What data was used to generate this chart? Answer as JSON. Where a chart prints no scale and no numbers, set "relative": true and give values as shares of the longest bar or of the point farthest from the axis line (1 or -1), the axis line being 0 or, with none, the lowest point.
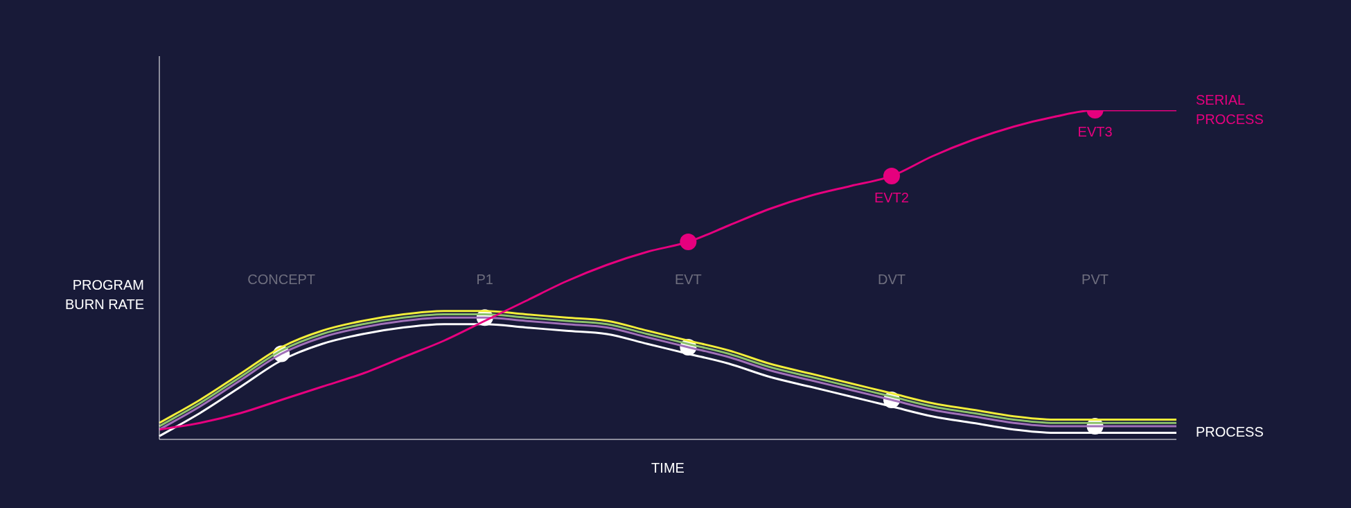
{
  "chart_data": {
    "type": "line",
    "relative": true,
    "xlabel": "TIME",
    "ylabel": "PROGRAM BURN RATE",
    "marker": "none",
    "legend": false,
    "grid": false,
    "categories": [
      null,
      null,
      null,
      "CONCEPT",
      null,
      null,
      null,
      null,
      "P1",
      null,
      null,
      null,
      null,
      "EVT",
      null,
      null,
      null,
      null,
      "DVT",
      null,
      null,
      null,
      null,
      "PVT",
      null,
      null
    ],
    "series": [
      {
        "color": "#f2ee3a",
        "values": [
          0.05,
          0.12,
          0.2,
          0.28,
          0.33,
          0.36,
          0.38,
          0.39,
          0.39,
          0.38,
          0.37,
          0.36,
          0.33,
          0.3,
          0.27,
          0.23,
          0.2,
          0.17,
          0.14,
          0.11,
          0.09,
          0.07,
          0.06,
          0.06,
          0.06,
          0.06
        ]
      },
      {
        "color": "#8dc26b",
        "values": [
          0.04,
          0.11,
          0.19,
          0.27,
          0.32,
          0.35,
          0.37,
          0.38,
          0.38,
          0.37,
          0.36,
          0.35,
          0.32,
          0.29,
          0.26,
          0.22,
          0.19,
          0.16,
          0.13,
          0.1,
          0.08,
          0.06,
          0.05,
          0.05,
          0.05,
          0.05
        ]
      },
      {
        "color": "#a070b8",
        "values": [
          0.03,
          0.1,
          0.18,
          0.26,
          0.31,
          0.34,
          0.36,
          0.37,
          0.37,
          0.36,
          0.35,
          0.34,
          0.31,
          0.28,
          0.25,
          0.21,
          0.18,
          0.15,
          0.12,
          0.09,
          0.07,
          0.05,
          0.04,
          0.04,
          0.04,
          0.04
        ]
      },
      {
        "name": "PROCESS",
        "color": "#ffffff",
        "values": [
          0.01,
          0.08,
          0.16,
          0.24,
          0.29,
          0.32,
          0.34,
          0.35,
          0.35,
          0.34,
          0.33,
          0.32,
          0.29,
          0.26,
          0.23,
          0.19,
          0.16,
          0.13,
          0.1,
          0.07,
          0.05,
          0.03,
          0.02,
          0.02,
          0.02,
          0.02
        ]
      },
      {
        "type": "scatter",
        "marker": "circle",
        "color": "#ffffff",
        "x": [
          "CONCEPT",
          "P1",
          "EVT",
          "DVT",
          "PVT"
        ],
        "values": [
          0.26,
          0.37,
          0.28,
          0.12,
          0.04
        ]
      },
      {
        "name": "SERIAL PROCESS",
        "color": "#e6007e",
        "values": [
          0.03,
          0.05,
          0.08,
          0.12,
          0.16,
          0.2,
          0.25,
          0.3,
          0.36,
          0.42,
          0.48,
          0.53,
          0.57,
          0.6,
          0.65,
          0.7,
          0.74,
          0.77,
          0.8,
          0.86,
          0.91,
          0.95,
          0.98,
          1.0,
          1.0,
          1.0
        ]
      },
      {
        "type": "scatter",
        "marker": "circle",
        "color": "#e6007e",
        "x": [
          "EVT",
          "DVT",
          "PVT"
        ],
        "values": [
          0.6,
          0.8,
          1.0
        ]
      }
    ],
    "annotations": [
      {
        "text": "EVT2",
        "x": "DVT",
        "y": 0.8
      },
      {
        "text": "EVT3",
        "x": "PVT",
        "y": 1.0
      }
    ]
  }
}
